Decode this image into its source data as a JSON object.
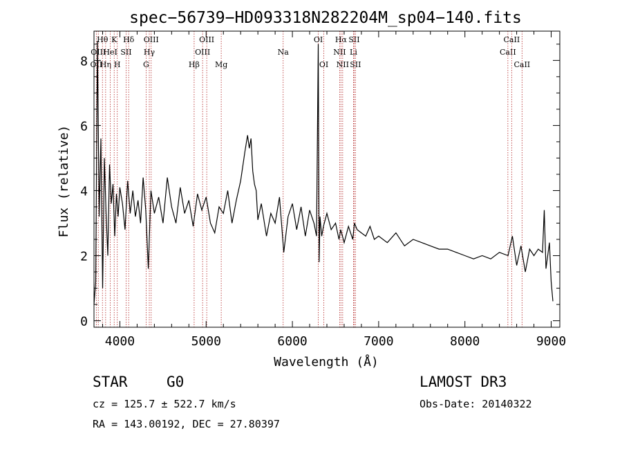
{
  "chart_data": {
    "type": "line",
    "title": "spec−56739−HD093318N282204M_sp04−140.fits",
    "xlabel": "Wavelength (Å)",
    "ylabel": "Flux (relative)",
    "xlim": [
      3700,
      9100
    ],
    "ylim": [
      -0.2,
      8.9
    ],
    "x_ticks": [
      4000,
      5000,
      6000,
      7000,
      8000,
      9000
    ],
    "x_tick_labels": [
      "4000",
      "5000",
      "6000",
      "7000",
      "8000",
      "9000"
    ],
    "y_ticks": [
      0,
      2,
      4,
      6,
      8
    ],
    "y_tick_labels": [
      "0",
      "2",
      "4",
      "6",
      "8"
    ],
    "series": [
      {
        "name": "flux",
        "x": [
          3700,
          3720,
          3740,
          3760,
          3780,
          3800,
          3820,
          3840,
          3860,
          3880,
          3900,
          3920,
          3940,
          3960,
          3980,
          4000,
          4030,
          4060,
          4090,
          4120,
          4150,
          4180,
          4210,
          4240,
          4270,
          4300,
          4330,
          4360,
          4400,
          4450,
          4500,
          4550,
          4600,
          4650,
          4700,
          4750,
          4800,
          4850,
          4900,
          4950,
          5000,
          5050,
          5100,
          5150,
          5200,
          5250,
          5300,
          5350,
          5400,
          5450,
          5480,
          5500,
          5520,
          5540,
          5560,
          5580,
          5600,
          5640,
          5700,
          5750,
          5800,
          5850,
          5900,
          5950,
          6000,
          6050,
          6100,
          6150,
          6200,
          6250,
          6280,
          6300,
          6310,
          6320,
          6340,
          6360,
          6400,
          6450,
          6500,
          6540,
          6560,
          6580,
          6600,
          6650,
          6700,
          6720,
          6750,
          6800,
          6850,
          6900,
          6950,
          7000,
          7100,
          7200,
          7300,
          7400,
          7500,
          7600,
          7700,
          7800,
          7900,
          8000,
          8100,
          8200,
          8300,
          8400,
          8500,
          8550,
          8600,
          8650,
          8700,
          8750,
          8800,
          8850,
          8900,
          8920,
          8940,
          8960,
          8980,
          9000,
          9020
        ],
        "y": [
          0.5,
          1.2,
          8.6,
          3.2,
          5.6,
          1.0,
          5.0,
          3.3,
          2.0,
          4.8,
          3.6,
          4.2,
          2.6,
          3.9,
          3.2,
          4.1,
          3.6,
          2.8,
          4.3,
          3.3,
          4.0,
          3.2,
          3.7,
          3.0,
          4.4,
          3.4,
          1.6,
          4.0,
          3.3,
          3.8,
          3.0,
          4.4,
          3.5,
          3.0,
          4.1,
          3.3,
          3.7,
          2.9,
          3.9,
          3.4,
          3.8,
          3.0,
          2.7,
          3.5,
          3.3,
          4.0,
          3.0,
          3.7,
          4.3,
          5.2,
          5.7,
          5.3,
          5.6,
          4.6,
          4.2,
          4.0,
          3.1,
          3.6,
          2.6,
          3.3,
          3.0,
          3.8,
          2.1,
          3.2,
          3.6,
          2.8,
          3.5,
          2.6,
          3.4,
          3.0,
          2.6,
          8.5,
          1.8,
          3.2,
          2.6,
          2.9,
          3.3,
          2.8,
          3.0,
          2.5,
          2.8,
          2.6,
          2.4,
          2.9,
          2.5,
          3.0,
          2.8,
          2.7,
          2.6,
          2.9,
          2.5,
          2.6,
          2.4,
          2.7,
          2.3,
          2.5,
          2.4,
          2.3,
          2.2,
          2.2,
          2.1,
          2.0,
          1.9,
          2.0,
          1.9,
          2.1,
          2.0,
          2.6,
          1.7,
          2.3,
          1.5,
          2.2,
          2.0,
          2.2,
          2.1,
          3.4,
          1.6,
          2.0,
          2.4,
          1.2,
          0.6
        ]
      }
    ],
    "line_markers": [
      {
        "wavelength": 3727,
        "label": "OII",
        "row": 2
      },
      {
        "wavelength": 3750,
        "label": "OIII",
        "row": 1
      },
      {
        "wavelength": 3798,
        "label": "Hθ",
        "row": 0
      },
      {
        "wavelength": 3835,
        "label": "Hη",
        "row": 2
      },
      {
        "wavelength": 3889,
        "label": "HeI",
        "row": 1
      },
      {
        "wavelength": 3934,
        "label": "K",
        "row": 0
      },
      {
        "wavelength": 3970,
        "label": "H",
        "row": 2
      },
      {
        "wavelength": 4072,
        "label": "SII",
        "row": 1
      },
      {
        "wavelength": 4102,
        "label": "Hδ",
        "row": 0
      },
      {
        "wavelength": 4304,
        "label": "G",
        "row": 2
      },
      {
        "wavelength": 4341,
        "label": "Hγ",
        "row": 1
      },
      {
        "wavelength": 4363,
        "label": "OIII",
        "row": 0
      },
      {
        "wavelength": 4861,
        "label": "Hβ",
        "row": 2
      },
      {
        "wavelength": 4959,
        "label": "OIII",
        "row": 1
      },
      {
        "wavelength": 5007,
        "label": "OIII",
        "row": 0
      },
      {
        "wavelength": 5175,
        "label": "Mg",
        "row": 2
      },
      {
        "wavelength": 5893,
        "label": "Na",
        "row": 1
      },
      {
        "wavelength": 6300,
        "label": "OI",
        "row": 0
      },
      {
        "wavelength": 6364,
        "label": "OI",
        "row": 2
      },
      {
        "wavelength": 6548,
        "label": "NII",
        "row": 1
      },
      {
        "wavelength": 6563,
        "label": "Hα",
        "row": 0
      },
      {
        "wavelength": 6583,
        "label": "NII",
        "row": 2
      },
      {
        "wavelength": 6708,
        "label": "Li",
        "row": 1
      },
      {
        "wavelength": 6716,
        "label": "SII",
        "row": 0
      },
      {
        "wavelength": 6731,
        "label": "SII",
        "row": 2
      },
      {
        "wavelength": 8498,
        "label": "CaII",
        "row": 1
      },
      {
        "wavelength": 8542,
        "label": "CaII",
        "row": 0
      },
      {
        "wavelength": 8662,
        "label": "CaII",
        "row": 2
      }
    ],
    "marker_color": "#b22222",
    "line_color": "#000000"
  },
  "info": {
    "class": "STAR",
    "subclass": "G0",
    "survey": "LAMOST DR3",
    "cz": "cz = 125.7 ± 522.7 km/s",
    "obs_date": "Obs-Date: 20140322",
    "coords": "RA = 143.00192, DEC =  27.80397"
  }
}
